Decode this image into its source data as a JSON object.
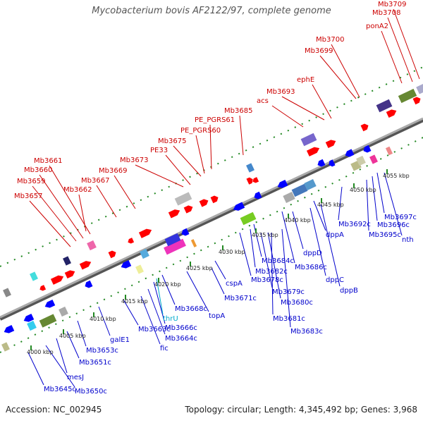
{
  "title": "Mycobacterium bovis AF2122/97, complete genome",
  "footer": {
    "accession": "Accession: NC_002945",
    "topology": "Topology: circular; Length: 4,345,492 bp; Genes: 3,968"
  },
  "colors": {
    "forward_label": "#cc0000",
    "reverse_label": "#0000cc",
    "rna_label": "#00aacc",
    "forward_arrow": "#ff0000",
    "reverse_arrow": "#0000ff",
    "backbone": "#888888",
    "dotted_track": "#228822"
  },
  "scale_ticks": [
    "4000 kbp",
    "4005 kbp",
    "4010 kbp",
    "4015 kbp",
    "4020 kbp",
    "4025 kbp",
    "4030 kbp",
    "4035 kbp",
    "4040 kbp",
    "4045 kbp",
    "4050 kbp",
    "4055 kbp"
  ],
  "forward_labels": [
    "Mb3657",
    "Mb3659",
    "Mb3660",
    "Mb3661",
    "Mb3662",
    "Mb3667",
    "Mb3669",
    "Mb3673",
    "PE33",
    "Mb3675",
    "PE_PGRS60",
    "PE_PGRS61",
    "Mb3685",
    "acs",
    "Mb3693",
    "ephE",
    "Mb3699",
    "Mb3700",
    "ponA2",
    "Mb3708",
    "Mb3709"
  ],
  "reverse_labels": [
    "Mb3645c",
    "Mb3650c",
    "mesJ",
    "Mb3651c",
    "Mb3653c",
    "galE1",
    "Mb3663c",
    "fic",
    "Mb3664c",
    "Mb3666c",
    "thrU",
    "Mb3668c",
    "topA",
    "Mb3671c",
    "cspA",
    "Mb3678c",
    "Mb3682c",
    "Mb3684c",
    "Mb3679c",
    "Mb3680c",
    "Mb3681c",
    "Mb3683c",
    "Mb3686c",
    "dppD",
    "dppC",
    "dppB",
    "dppA",
    "Mb3692c",
    "Mb3695c",
    "Mb3696c",
    "Mb3697c",
    "nth"
  ]
}
